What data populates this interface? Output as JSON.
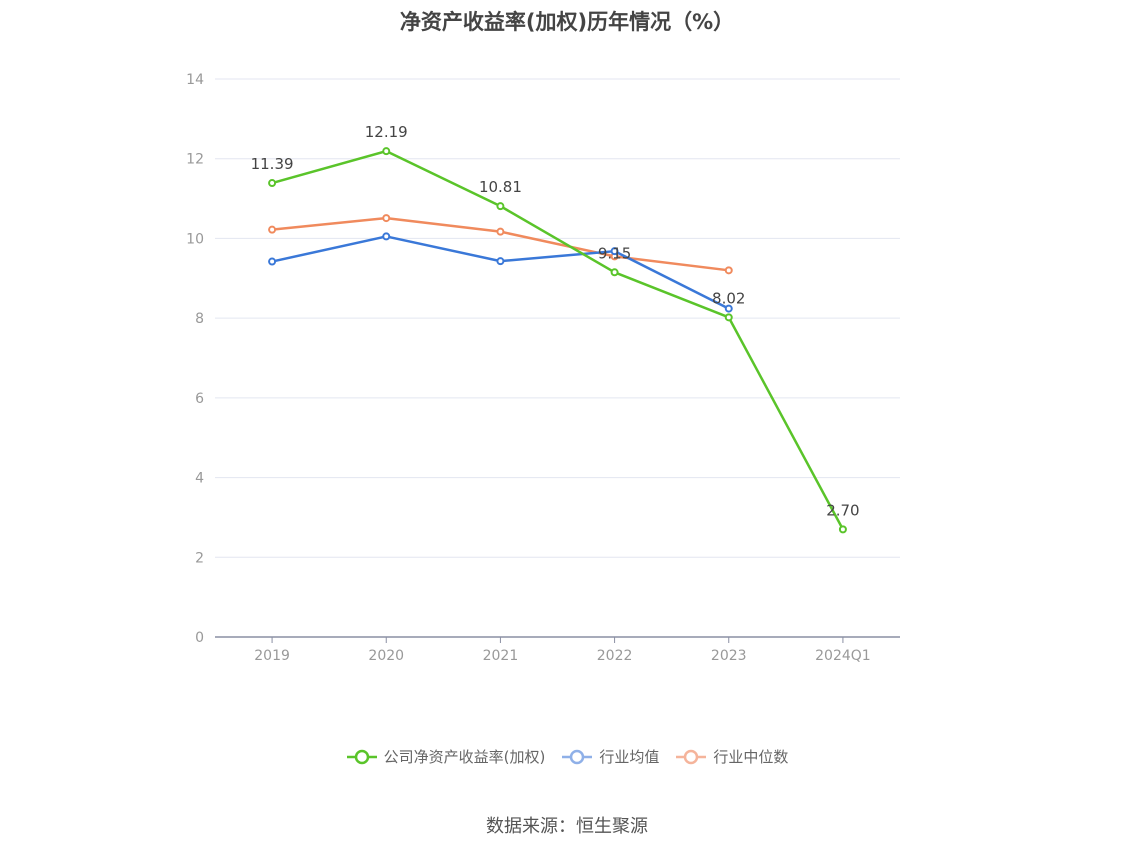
{
  "chart_data": {
    "type": "line",
    "title": "净资产收益率(加权)历年情况（%）",
    "categories": [
      "2019",
      "2020",
      "2021",
      "2022",
      "2023",
      "2024Q1"
    ],
    "ylim": [
      0,
      14
    ],
    "yticks": [
      0,
      2,
      4,
      6,
      8,
      10,
      12,
      14
    ],
    "grid": true,
    "legend_position": "bottom",
    "series": [
      {
        "name": "公司净资产收益率(加权)",
        "color": "#5ac42a",
        "values": [
          11.39,
          12.19,
          10.81,
          9.15,
          8.02,
          2.7
        ],
        "labels": [
          "11.39",
          "12.19",
          "10.81",
          "9.15",
          "8.02",
          "2.70"
        ],
        "show_labels": true
      },
      {
        "name": "行业均值",
        "color": "#3a78d8",
        "values": [
          9.42,
          10.05,
          9.43,
          9.68,
          8.24,
          null
        ],
        "show_labels": false
      },
      {
        "name": "行业中位数",
        "color": "#f08a5d",
        "values": [
          10.22,
          10.51,
          10.17,
          9.55,
          9.2,
          null
        ],
        "show_labels": false
      }
    ]
  },
  "legend": {
    "items": [
      "公司净资产收益率(加权)",
      "行业均值",
      "行业中位数"
    ],
    "colors": [
      "#5ac42a",
      "#8fb0e8",
      "#f5b49b"
    ]
  },
  "source_text": "数据来源：恒生聚源"
}
